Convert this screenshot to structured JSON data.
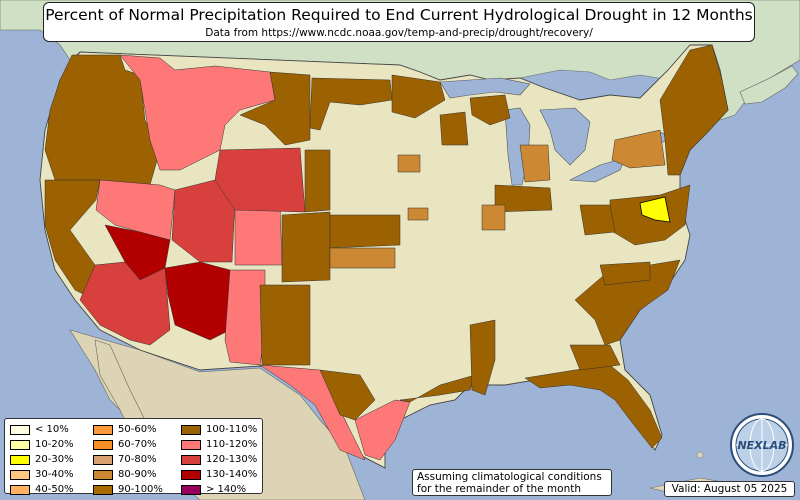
{
  "title": "Percent of Normal Precipitation Required to End Current Hydrological Drought in 12 Months",
  "subtitle": "Data from https://www.ncdc.noaa.gov/temp-and-precip/drought/recovery/",
  "note_lines": [
    "Assuming climatological conditions",
    "for the remainder of the month"
  ],
  "valid": "Valid: August 05 2025",
  "logo": {
    "text": "NEXLAB",
    "icon": "globe-logo-icon"
  },
  "colors": {
    "ocean": "#9db4d6",
    "land": "#e8e5c0",
    "canada": "#cfe0c4",
    "mexico": "#dcd4b4",
    "state_border": "#444444"
  },
  "legend": [
    {
      "label": "< 10%",
      "color": "#fffde2"
    },
    {
      "label": "10-20%",
      "color": "#ffffa8"
    },
    {
      "label": "20-30%",
      "color": "#ffff00"
    },
    {
      "label": "30-40%",
      "color": "#ffc880"
    },
    {
      "label": "40-50%",
      "color": "#ffb060"
    },
    {
      "label": "50-60%",
      "color": "#ff9a3a"
    },
    {
      "label": "60-70%",
      "color": "#f89028"
    },
    {
      "label": "70-80%",
      "color": "#d8a070"
    },
    {
      "label": "80-90%",
      "color": "#cc8833"
    },
    {
      "label": "90-100%",
      "color": "#a86b00"
    },
    {
      "label": "100-110%",
      "color": "#9c6100"
    },
    {
      "label": "110-120%",
      "color": "#ff7878"
    },
    {
      "label": "120-130%",
      "color": "#d8403e"
    },
    {
      "label": "130-140%",
      "color": "#b20000"
    },
    {
      "label": "> 140%",
      "color": "#99005e"
    }
  ]
}
